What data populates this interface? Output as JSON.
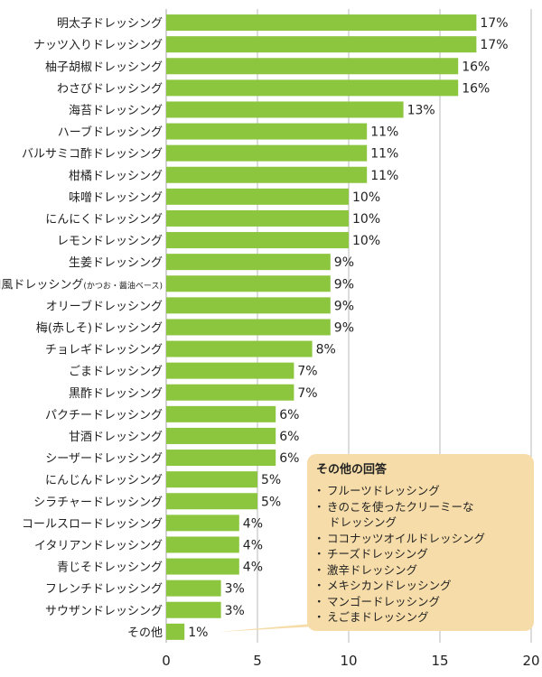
{
  "chart_data": {
    "type": "bar",
    "orientation": "horizontal",
    "categories": [
      {
        "label": "明太子ドレッシング",
        "suffix": ""
      },
      {
        "label": "ナッツ入りドレッシング",
        "suffix": ""
      },
      {
        "label": "柚子胡椒ドレッシング",
        "suffix": ""
      },
      {
        "label": "わさびドレッシング",
        "suffix": ""
      },
      {
        "label": "海苔ドレッシング",
        "suffix": ""
      },
      {
        "label": "ハーブドレッシング",
        "suffix": ""
      },
      {
        "label": "バルサミコ酢ドレッシング",
        "suffix": ""
      },
      {
        "label": "柑橘ドレッシング",
        "suffix": ""
      },
      {
        "label": "味噌ドレッシング",
        "suffix": ""
      },
      {
        "label": "にんにくドレッシング",
        "suffix": ""
      },
      {
        "label": "レモンドレッシング",
        "suffix": ""
      },
      {
        "label": "生姜ドレッシング",
        "suffix": ""
      },
      {
        "label": "和風ドレッシング",
        "suffix": "(かつお・醤油ベース)"
      },
      {
        "label": "オリーブドレッシング",
        "suffix": ""
      },
      {
        "label": "梅(赤しそ)ドレッシング",
        "suffix": ""
      },
      {
        "label": "チョレギドレッシング",
        "suffix": ""
      },
      {
        "label": "ごまドレッシング",
        "suffix": ""
      },
      {
        "label": "黒酢ドレッシング",
        "suffix": ""
      },
      {
        "label": "パクチードレッシング",
        "suffix": ""
      },
      {
        "label": "甘酒ドレッシング",
        "suffix": ""
      },
      {
        "label": "シーザードレッシング",
        "suffix": ""
      },
      {
        "label": "にんじんドレッシング",
        "suffix": ""
      },
      {
        "label": "シラチャードレッシング",
        "suffix": ""
      },
      {
        "label": "コールスロードレッシング",
        "suffix": ""
      },
      {
        "label": "イタリアンドレッシング",
        "suffix": ""
      },
      {
        "label": "青じそドレッシング",
        "suffix": ""
      },
      {
        "label": "フレンチドレッシング",
        "suffix": ""
      },
      {
        "label": "サウザンドレッシング",
        "suffix": ""
      },
      {
        "label": "その他",
        "suffix": ""
      }
    ],
    "values": [
      17,
      17,
      16,
      16,
      13,
      11,
      11,
      11,
      10,
      10,
      10,
      9,
      9,
      9,
      9,
      8,
      7,
      7,
      6,
      6,
      6,
      5,
      5,
      4,
      4,
      4,
      3,
      3,
      1
    ],
    "value_labels": [
      "17%",
      "17%",
      "16%",
      "16%",
      "13%",
      "11%",
      "11%",
      "11%",
      "10%",
      "10%",
      "10%",
      "9%",
      "9%",
      "9%",
      "9%",
      "8%",
      "7%",
      "7%",
      "6%",
      "6%",
      "6%",
      "5%",
      "5%",
      "4%",
      "4%",
      "4%",
      "3%",
      "3%",
      "1%"
    ],
    "x_ticks": [
      "0",
      "5",
      "10",
      "15",
      "20"
    ],
    "xlim": [
      0,
      20
    ],
    "grid": true,
    "bar_color": "#8cc63f",
    "grid_color": "#b8b8b8"
  },
  "callout": {
    "title": "その他の回答",
    "items": [
      "フルーツドレッシング",
      "きのこを使ったクリーミーな",
      "ドレッシング",
      "ココナッツオイルドレッシング",
      "チーズドレッシング",
      "激辛ドレッシング",
      "メキシカンドレッシング",
      "マンゴードレッシング",
      "えごまドレッシング"
    ],
    "continuation_indices": [
      2
    ],
    "color": "#f6dca8"
  }
}
